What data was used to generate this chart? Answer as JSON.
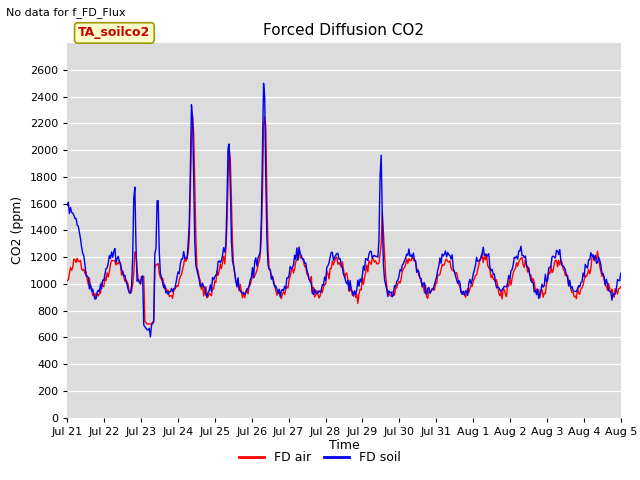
{
  "title": "Forced Diffusion CO2",
  "ylabel": "CO2 (ppm)",
  "xlabel": "Time",
  "no_data_text": "No data for f_FD_Flux",
  "legend_box_text": "TA_soilco2",
  "ylim": [
    0,
    2800
  ],
  "yticks": [
    0,
    200,
    400,
    600,
    800,
    1000,
    1200,
    1400,
    1600,
    1800,
    2000,
    2200,
    2400,
    2600
  ],
  "bg_color": "#dcdcdc",
  "line_red": "#ff0000",
  "line_blue": "#0000ee",
  "legend_fd_air": "FD air",
  "legend_fd_soil": "FD soil",
  "x_tick_labels": [
    "Jul 21",
    "Jul 22",
    "Jul 23",
    "Jul 24",
    "Jul 25",
    "Jul 26",
    "Jul 27",
    "Jul 28",
    "Jul 29",
    "Jul 30",
    "Jul 31",
    "Aug 1",
    "Aug 2",
    "Aug 3",
    "Aug 4",
    "Aug 5"
  ],
  "n_points": 500
}
